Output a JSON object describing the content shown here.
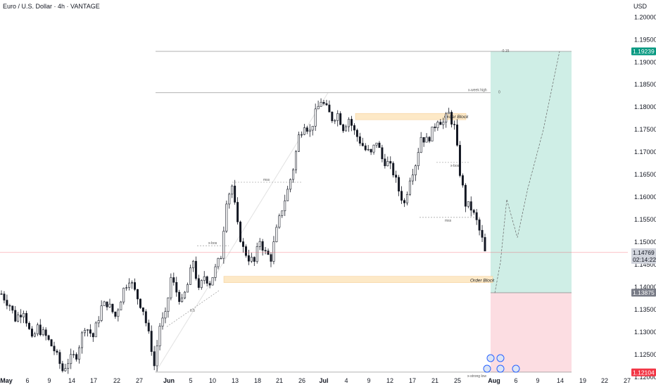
{
  "header": {
    "symbol": "Euro / U.S. Dollar · 4h · VANTAGE",
    "currency": "USD"
  },
  "colors": {
    "up_candle": "#ffffff",
    "down_candle": "#131722",
    "target_zone": "#cfeee6",
    "stop_zone": "#fcdde2",
    "order_block": "#fde9c7",
    "target_badge": "#089981",
    "stop_badge": "#f23645",
    "entry_badge": "#787b86",
    "current_badge": "#d1d4dc"
  },
  "chart_data": {
    "type": "candlestick",
    "timeframe": "4h",
    "yaxis_ticks": [
      "1.20000",
      "1.19500",
      "1.19000",
      "1.18500",
      "1.18000",
      "1.17500",
      "1.17000",
      "1.16500",
      "1.16000",
      "1.15500",
      "1.15000",
      "1.14500",
      "1.14000",
      "1.13500",
      "1.13000",
      "1.12500",
      "1.12000"
    ],
    "xaxis_ticks": [
      {
        "label": "May",
        "bold": true
      },
      {
        "label": "6",
        "bold": false
      },
      {
        "label": "9",
        "bold": false
      },
      {
        "label": "14",
        "bold": false
      },
      {
        "label": "17",
        "bold": false
      },
      {
        "label": "22",
        "bold": false
      },
      {
        "label": "27",
        "bold": false
      },
      {
        "label": "Jun",
        "bold": true
      },
      {
        "label": "5",
        "bold": false
      },
      {
        "label": "10",
        "bold": false
      },
      {
        "label": "13",
        "bold": false
      },
      {
        "label": "18",
        "bold": false
      },
      {
        "label": "21",
        "bold": false
      },
      {
        "label": "26",
        "bold": false
      },
      {
        "label": "Jul",
        "bold": true
      },
      {
        "label": "4",
        "bold": false
      },
      {
        "label": "9",
        "bold": false
      },
      {
        "label": "12",
        "bold": false
      },
      {
        "label": "17",
        "bold": false
      },
      {
        "label": "21",
        "bold": false
      },
      {
        "label": "25",
        "bold": false
      },
      {
        "label": "Aug",
        "bold": true
      },
      {
        "label": "6",
        "bold": false
      },
      {
        "label": "9",
        "bold": false
      },
      {
        "label": "14",
        "bold": false
      },
      {
        "label": "19",
        "bold": false
      },
      {
        "label": "22",
        "bold": false
      },
      {
        "label": "27",
        "bold": false
      }
    ],
    "ylim": [
      1.1178,
      1.2038
    ],
    "close_path": [
      [
        0,
        1.1385
      ],
      [
        3,
        1.136
      ],
      [
        5,
        1.133
      ],
      [
        8,
        1.135
      ],
      [
        11,
        1.128
      ],
      [
        13,
        1.131
      ],
      [
        16,
        1.129
      ],
      [
        19,
        1.126
      ],
      [
        22,
        1.1215
      ],
      [
        24,
        1.1235
      ],
      [
        27,
        1.125
      ],
      [
        30,
        1.1315
      ],
      [
        33,
        1.129
      ],
      [
        36,
        1.1355
      ],
      [
        38,
        1.1365
      ],
      [
        41,
        1.1335
      ],
      [
        44,
        1.1395
      ],
      [
        46,
        1.142
      ],
      [
        48,
        1.139
      ],
      [
        51,
        1.135
      ],
      [
        54,
        1.1265
      ],
      [
        55,
        1.1225
      ],
      [
        57,
        1.1315
      ],
      [
        59,
        1.1335
      ],
      [
        61,
        1.142
      ],
      [
        63,
        1.139
      ],
      [
        65,
        1.1365
      ],
      [
        67,
        1.1405
      ],
      [
        69,
        1.146
      ],
      [
        71,
        1.139
      ],
      [
        73,
        1.1425
      ],
      [
        75,
        1.141
      ],
      [
        77,
        1.144
      ],
      [
        79,
        1.147
      ],
      [
        81,
        1.1595
      ],
      [
        83,
        1.1625
      ],
      [
        85,
        1.1535
      ],
      [
        87,
        1.1485
      ],
      [
        89,
        1.1465
      ],
      [
        91,
        1.1455
      ],
      [
        93,
        1.1505
      ],
      [
        95,
        1.1475
      ],
      [
        97,
        1.1465
      ],
      [
        99,
        1.1525
      ],
      [
        101,
        1.1575
      ],
      [
        103,
        1.1615
      ],
      [
        105,
        1.1665
      ],
      [
        107,
        1.1735
      ],
      [
        109,
        1.1765
      ],
      [
        111,
        1.1745
      ],
      [
        113,
        1.1785
      ],
      [
        115,
        1.1815
      ],
      [
        117,
        1.1795
      ],
      [
        119,
        1.1775
      ],
      [
        121,
        1.1785
      ],
      [
        123,
        1.1755
      ],
      [
        125,
        1.1775
      ],
      [
        127,
        1.1745
      ],
      [
        129,
        1.1725
      ],
      [
        131,
        1.1705
      ],
      [
        133,
        1.1695
      ],
      [
        135,
        1.1725
      ],
      [
        137,
        1.1685
      ],
      [
        139,
        1.1675
      ],
      [
        141,
        1.1655
      ],
      [
        143,
        1.1615
      ],
      [
        145,
        1.1585
      ],
      [
        147,
        1.1645
      ],
      [
        149,
        1.1675
      ],
      [
        151,
        1.1735
      ],
      [
        153,
        1.1725
      ],
      [
        155,
        1.1745
      ],
      [
        157,
        1.1775
      ],
      [
        159,
        1.1765
      ],
      [
        161,
        1.1785
      ],
      [
        163,
        1.1755
      ],
      [
        165,
        1.1655
      ],
      [
        167,
        1.1585
      ],
      [
        169,
        1.1575
      ],
      [
        171,
        1.1545
      ],
      [
        173,
        1.1505
      ],
      [
        174,
        1.1476
      ]
    ],
    "annotations": [
      {
        "label": "x-week high",
        "kind": "line",
        "price": 1.1832
      },
      {
        "label": "Order Block",
        "kind": "zone",
        "price_top": 1.1786,
        "price_bottom": 1.1772
      },
      {
        "label": "Order Block",
        "kind": "zone",
        "price_top": 1.1424,
        "price_bottom": 1.141
      },
      {
        "label": "mss",
        "kind": "text"
      },
      {
        "label": "x-bos",
        "kind": "text"
      },
      {
        "label": "x-bos",
        "kind": "text"
      },
      {
        "label": "mss",
        "kind": "text"
      },
      {
        "label": "x-strong low",
        "kind": "line",
        "price": 1.1211
      },
      {
        "label": "0",
        "kind": "text"
      },
      {
        "label": "0.5",
        "kind": "text"
      },
      {
        "label": "0.5",
        "kind": "text"
      },
      {
        "label": "-0.15",
        "kind": "text"
      }
    ],
    "position": {
      "target": 1.19239,
      "entry": 1.13875,
      "stop": 1.12104,
      "current": 1.14769,
      "countdown": "02:14:22"
    },
    "price_labels": {
      "target": "1.19239",
      "entry": "1.13875",
      "stop": "1.12104",
      "current": "1.14769",
      "countdown": "02:14:22"
    },
    "forecast_path": [
      1.1387,
      1.1455,
      1.1595,
      1.151,
      1.162,
      1.175,
      1.1924
    ]
  }
}
